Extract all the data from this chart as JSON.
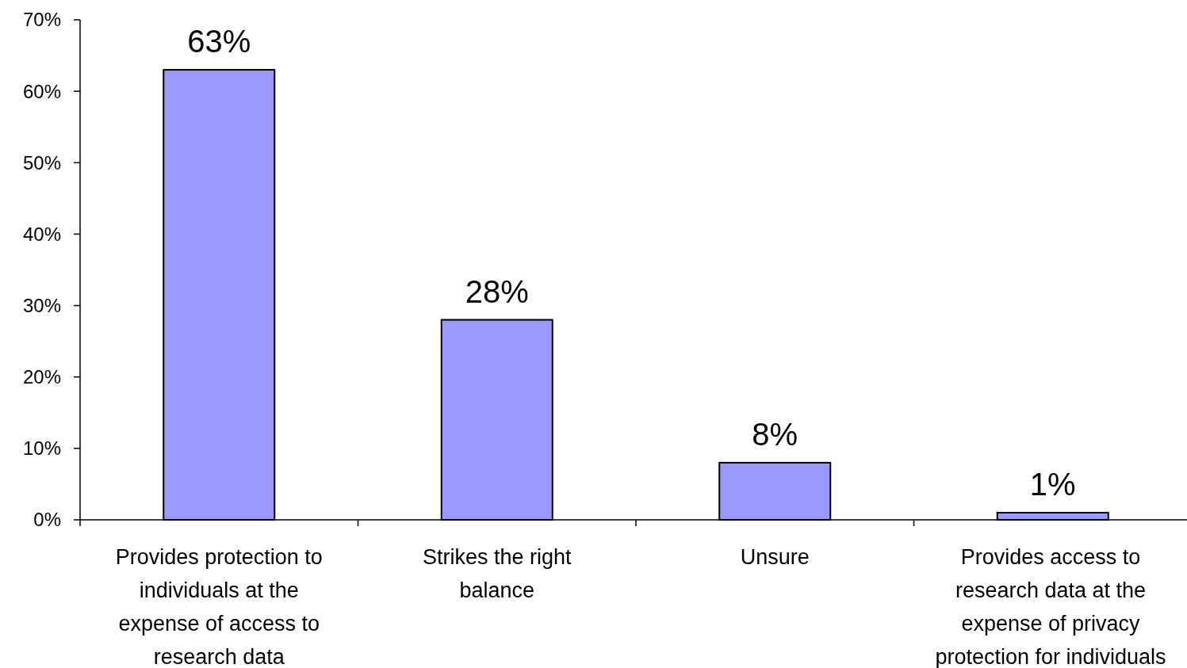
{
  "chart_data": {
    "type": "bar",
    "categories": [
      "Provides protection to\nindividuals at the\nexpense of access to\nresearch data",
      "Strikes the right\nbalance",
      "Unsure",
      "Provides access to\nresearch data at the\nexpense of privacy\nprotection for individuals"
    ],
    "values": [
      63,
      28,
      8,
      1
    ],
    "value_labels": [
      "63%",
      "28%",
      "8%",
      "1%"
    ],
    "color": "#9999ff",
    "ylim": [
      0,
      70
    ],
    "yticks": [
      {
        "value": 0,
        "label": "0%"
      },
      {
        "value": 10,
        "label": "10%"
      },
      {
        "value": 20,
        "label": "20%"
      },
      {
        "value": 30,
        "label": "30%"
      },
      {
        "value": 40,
        "label": "40%"
      },
      {
        "value": 50,
        "label": "50%"
      },
      {
        "value": 60,
        "label": "60%"
      },
      {
        "value": 70,
        "label": "70%"
      }
    ],
    "grid": false
  }
}
